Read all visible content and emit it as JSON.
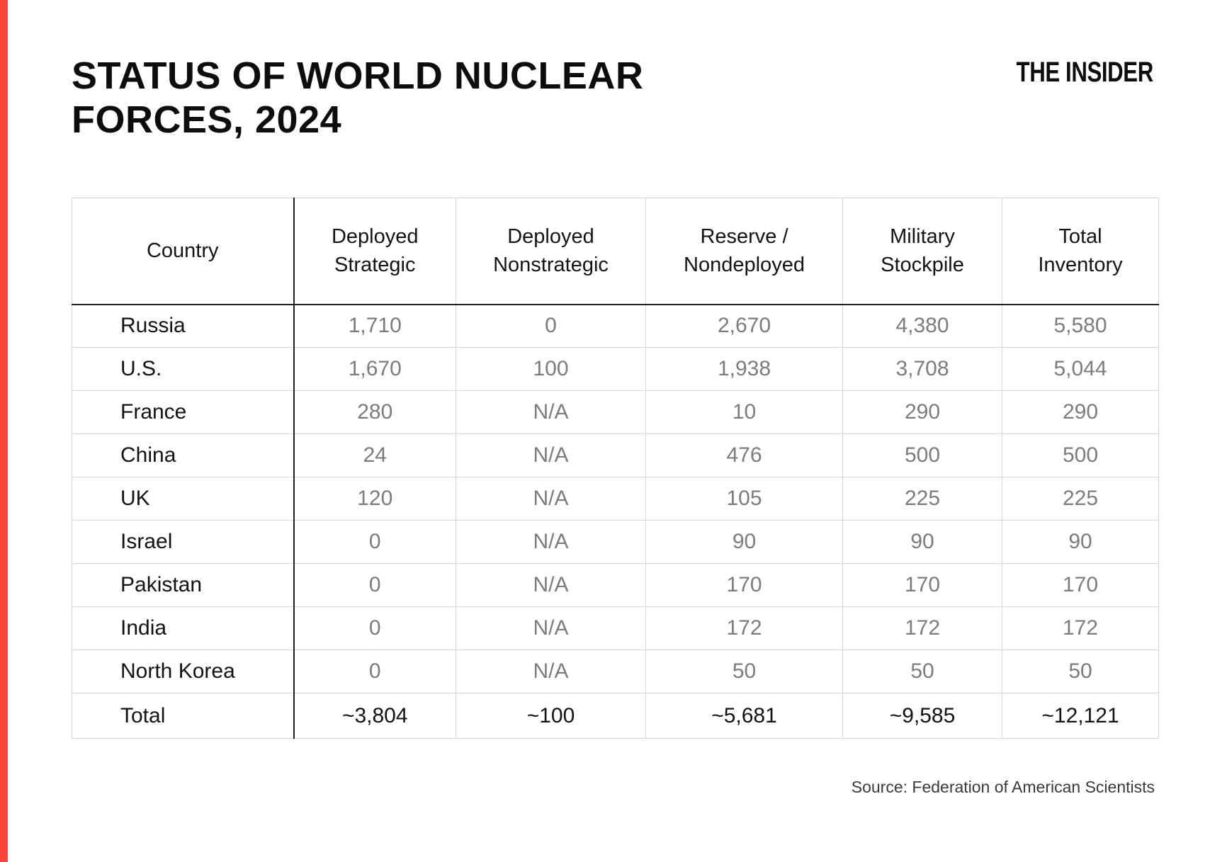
{
  "colors": {
    "accent_red": "#f94338",
    "grid_light": "#d8d8d8",
    "grid_dark": "#1f1f1f",
    "number_gray": "#7c7c7c",
    "text_black": "#121212",
    "source_gray": "#3a3a3a"
  },
  "header": {
    "title_line1": "STATUS OF WORLD NUCLEAR",
    "title_line2": "FORCES, 2024",
    "brand": "THE INSIDER"
  },
  "footer": {
    "source": "Source: Federation of American Scientists"
  },
  "chart_data": {
    "type": "table",
    "title": "STATUS OF WORLD NUCLEAR FORCES, 2024",
    "columns": [
      "Country",
      "Deployed Strategic",
      "Deployed Nonstrategic",
      "Reserve / Nondeployed",
      "Military Stockpile",
      "Total Inventory"
    ],
    "rows": [
      [
        "Russia",
        "1,710",
        "0",
        "2,670",
        "4,380",
        "5,580"
      ],
      [
        "U.S.",
        "1,670",
        "100",
        "1,938",
        "3,708",
        "5,044"
      ],
      [
        "France",
        "280",
        "N/A",
        "10",
        "290",
        "290"
      ],
      [
        "China",
        "24",
        "N/A",
        "476",
        "500",
        "500"
      ],
      [
        "UK",
        "120",
        "N/A",
        "105",
        "225",
        "225"
      ],
      [
        "Israel",
        "0",
        "N/A",
        "90",
        "90",
        "90"
      ],
      [
        "Pakistan",
        "0",
        "N/A",
        "170",
        "170",
        "170"
      ],
      [
        "India",
        "0",
        "N/A",
        "172",
        "172",
        "172"
      ],
      [
        "North Korea",
        "0",
        "N/A",
        "50",
        "50",
        "50"
      ]
    ],
    "total_row": [
      "Total",
      "~3,804",
      "~100",
      "~5,681",
      "~9,585",
      "~12,121"
    ],
    "source": "Federation of American Scientists"
  }
}
